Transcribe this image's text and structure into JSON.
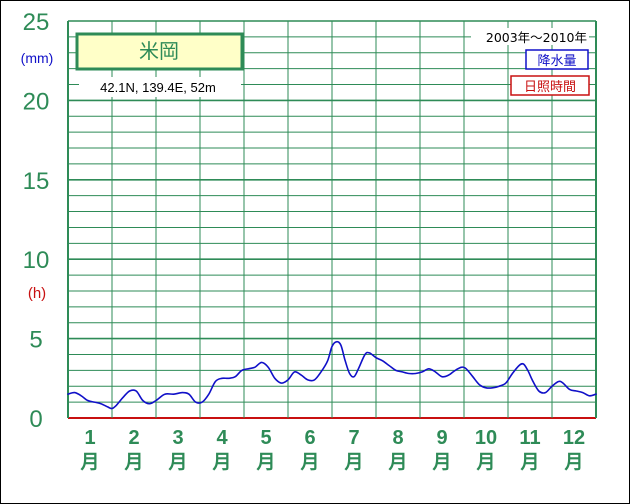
{
  "chart_data": {
    "type": "line",
    "station_name": "米岡",
    "location_text": "42.1N,  139.4E,  52m",
    "period": "2003年〜2010年",
    "legend": {
      "precip": "降水量",
      "sunshine": "日照時間"
    },
    "y_unit_precip": "(mm)",
    "y_unit_sunshine": "(h)",
    "y_ticks": [
      {
        "value": 0,
        "label": "0"
      },
      {
        "value": 5,
        "label": "5"
      },
      {
        "value": 10,
        "label": "10"
      },
      {
        "value": 15,
        "label": "15"
      },
      {
        "value": 20,
        "label": "20"
      },
      {
        "value": 25,
        "label": "25"
      }
    ],
    "ylim": [
      0,
      25
    ],
    "x_range": [
      0.5,
      12.5
    ],
    "months": [
      {
        "num": "1",
        "suffix": "月"
      },
      {
        "num": "2",
        "suffix": "月"
      },
      {
        "num": "3",
        "suffix": "月"
      },
      {
        "num": "4",
        "suffix": "月"
      },
      {
        "num": "5",
        "suffix": "月"
      },
      {
        "num": "6",
        "suffix": "月"
      },
      {
        "num": "7",
        "suffix": "月"
      },
      {
        "num": "8",
        "suffix": "月"
      },
      {
        "num": "9",
        "suffix": "月"
      },
      {
        "num": "10",
        "suffix": "月"
      },
      {
        "num": "11",
        "suffix": "月"
      },
      {
        "num": "12",
        "suffix": "月"
      }
    ],
    "series": [
      {
        "name": "降水量",
        "color": "#1010c8",
        "points": [
          [
            0.5,
            1.5
          ],
          [
            0.65,
            1.6
          ],
          [
            0.8,
            1.4
          ],
          [
            0.95,
            1.1
          ],
          [
            1.1,
            1.0
          ],
          [
            1.25,
            0.9
          ],
          [
            1.4,
            0.7
          ],
          [
            1.5,
            0.6
          ],
          [
            1.6,
            0.8
          ],
          [
            1.75,
            1.3
          ],
          [
            1.9,
            1.7
          ],
          [
            2.05,
            1.7
          ],
          [
            2.2,
            1.1
          ],
          [
            2.35,
            0.9
          ],
          [
            2.5,
            1.1
          ],
          [
            2.7,
            1.5
          ],
          [
            2.9,
            1.5
          ],
          [
            3.1,
            1.6
          ],
          [
            3.25,
            1.5
          ],
          [
            3.4,
            1.0
          ],
          [
            3.55,
            1.0
          ],
          [
            3.7,
            1.5
          ],
          [
            3.85,
            2.3
          ],
          [
            4.0,
            2.5
          ],
          [
            4.15,
            2.5
          ],
          [
            4.3,
            2.6
          ],
          [
            4.45,
            3.0
          ],
          [
            4.6,
            3.1
          ],
          [
            4.75,
            3.2
          ],
          [
            4.9,
            3.5
          ],
          [
            5.05,
            3.2
          ],
          [
            5.2,
            2.5
          ],
          [
            5.35,
            2.2
          ],
          [
            5.5,
            2.4
          ],
          [
            5.65,
            2.9
          ],
          [
            5.8,
            2.7
          ],
          [
            5.95,
            2.4
          ],
          [
            6.1,
            2.4
          ],
          [
            6.25,
            2.9
          ],
          [
            6.4,
            3.6
          ],
          [
            6.5,
            4.5
          ],
          [
            6.6,
            4.8
          ],
          [
            6.7,
            4.6
          ],
          [
            6.8,
            3.6
          ],
          [
            6.9,
            2.8
          ],
          [
            7.0,
            2.6
          ],
          [
            7.1,
            3.1
          ],
          [
            7.25,
            4.0
          ],
          [
            7.35,
            4.1
          ],
          [
            7.5,
            3.8
          ],
          [
            7.65,
            3.6
          ],
          [
            7.8,
            3.3
          ],
          [
            7.95,
            3.0
          ],
          [
            8.1,
            2.9
          ],
          [
            8.25,
            2.8
          ],
          [
            8.4,
            2.8
          ],
          [
            8.55,
            2.9
          ],
          [
            8.7,
            3.1
          ],
          [
            8.85,
            2.9
          ],
          [
            9.0,
            2.6
          ],
          [
            9.15,
            2.7
          ],
          [
            9.3,
            3.0
          ],
          [
            9.45,
            3.2
          ],
          [
            9.55,
            3.1
          ],
          [
            9.7,
            2.6
          ],
          [
            9.85,
            2.1
          ],
          [
            10.0,
            1.9
          ],
          [
            10.15,
            1.9
          ],
          [
            10.3,
            2.0
          ],
          [
            10.45,
            2.2
          ],
          [
            10.6,
            2.8
          ],
          [
            10.75,
            3.3
          ],
          [
            10.85,
            3.4
          ],
          [
            10.95,
            3.0
          ],
          [
            11.05,
            2.4
          ],
          [
            11.2,
            1.7
          ],
          [
            11.35,
            1.6
          ],
          [
            11.5,
            2.0
          ],
          [
            11.65,
            2.3
          ],
          [
            11.75,
            2.2
          ],
          [
            11.9,
            1.8
          ],
          [
            12.05,
            1.7
          ],
          [
            12.2,
            1.6
          ],
          [
            12.35,
            1.4
          ],
          [
            12.5,
            1.5
          ]
        ]
      }
    ],
    "colors": {
      "grid": "#2e8b57",
      "axis_number": "#2e8b57",
      "unit_mm": "#1010c8",
      "unit_h": "#c81010",
      "title_box_fill": "#ffffc8",
      "title_box_border": "#2e8b57",
      "legend_precip": "#1010c8",
      "legend_sunshine": "#c81010",
      "baseline": "#c81010"
    }
  }
}
